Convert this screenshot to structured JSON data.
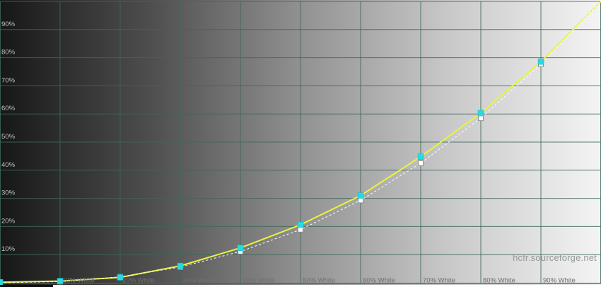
{
  "watermark": "hcfr.sourceforge.net",
  "y_axis": {
    "tick_labels": [
      "90%",
      "80%",
      "70%",
      "60%",
      "50%",
      "40%",
      "30%",
      "20%",
      "10%"
    ]
  },
  "x_axis": {
    "tick_labels": [
      "10% White",
      "20% White",
      "30% White",
      "40% White",
      "50% White",
      "60% White",
      "70% White",
      "80% White",
      "90% White"
    ]
  },
  "chart_data": {
    "type": "line",
    "title": "",
    "xlabel": "",
    "ylabel": "",
    "x_stimulus_percent": [
      0,
      10,
      20,
      30,
      40,
      50,
      60,
      70,
      80,
      90,
      100
    ],
    "series": [
      {
        "name": "measured-luminance",
        "line_color": "#e9f43c",
        "line_style": "solid",
        "marker": "square",
        "marker_color": "#2cd9e2",
        "values_percent": [
          0.2,
          0.6,
          1.9,
          6.0,
          12.4,
          20.6,
          31.0,
          44.8,
          60.3,
          78.6,
          100
        ]
      },
      {
        "name": "reference-curve",
        "line_color": "#ffffff",
        "line_style": "dashed",
        "marker": "square",
        "marker_color": "#ffffff",
        "values_percent": [
          0,
          0.4,
          2.1,
          5.6,
          11.1,
          18.9,
          29.3,
          42.5,
          58.5,
          77.7,
          100
        ]
      }
    ],
    "xlim": [
      0,
      100
    ],
    "ylim": [
      0,
      100
    ],
    "grid": true,
    "legend": "none"
  },
  "colors": {
    "grid": "#3c685a",
    "y_tick_label": "#c2c6c4",
    "x_tick_label": "#6f6f6f",
    "watermark": "#94999b",
    "marker_border": "#8f8f8f",
    "background_gradient": [
      "#171717",
      "#4e4e4e",
      "#919191",
      "#c9c9c9",
      "#f4f4f4"
    ]
  }
}
